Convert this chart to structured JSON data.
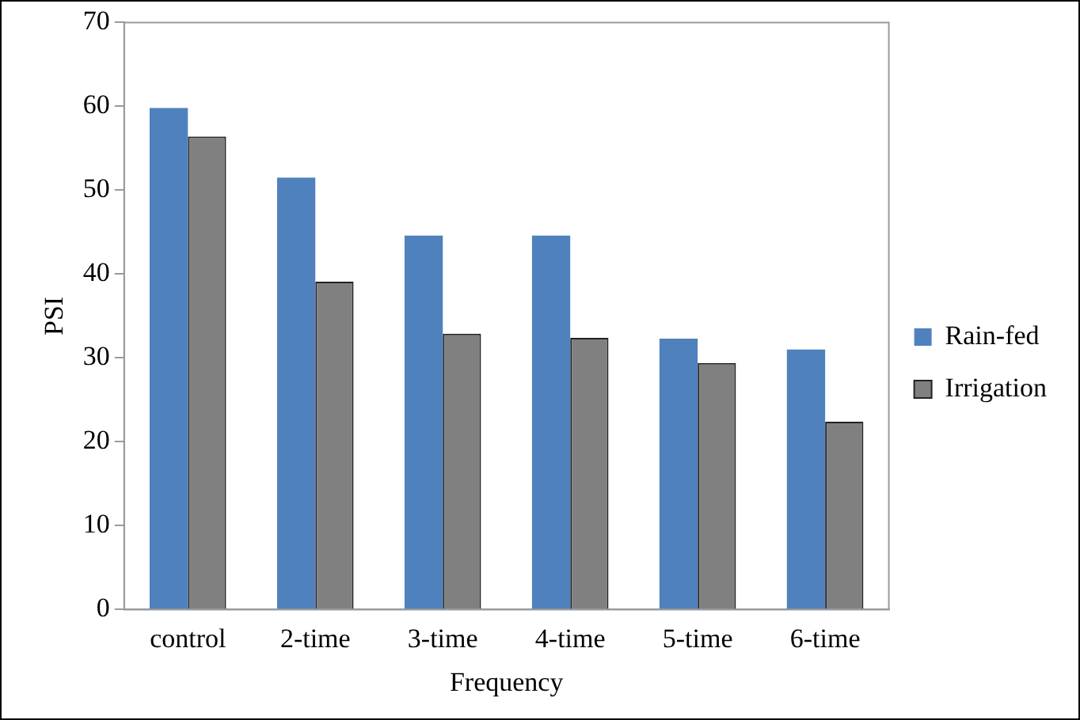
{
  "chart_data": {
    "type": "bar",
    "xlabel": "Frequency",
    "ylabel": "PSI",
    "categories": [
      "control",
      "2-time",
      "3-time",
      "4-time",
      "5-time",
      "6-time"
    ],
    "series": [
      {
        "name": "Rain-fed",
        "color": "#4f81bd",
        "values": [
          59.8,
          51.5,
          44.6,
          44.6,
          32.3,
          31.0
        ]
      },
      {
        "name": "Irrigation",
        "color": "#808080",
        "values": [
          56.4,
          39.1,
          32.9,
          32.4,
          29.4,
          22.4
        ]
      }
    ],
    "ylim": [
      0,
      70
    ],
    "yticks": [
      0,
      10,
      20,
      30,
      40,
      50,
      60,
      70
    ],
    "grid": false,
    "legend": "right"
  }
}
